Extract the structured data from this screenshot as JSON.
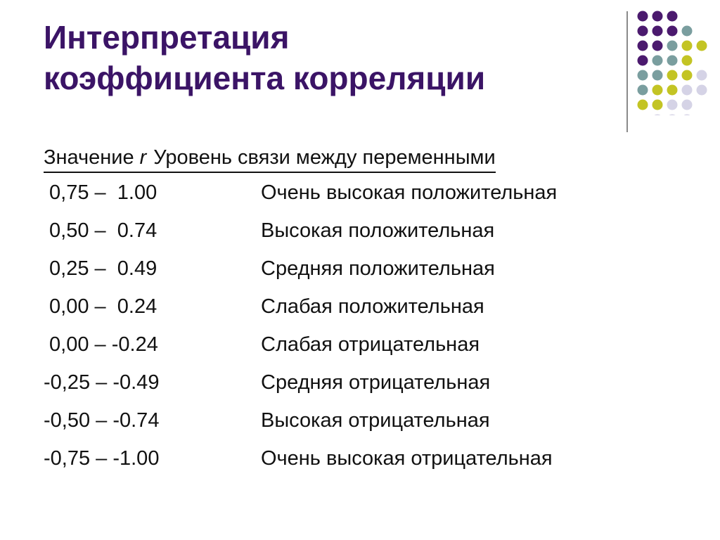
{
  "slide": {
    "title_line1": "Интерпретация",
    "title_line2": "коэффициента корреляции"
  },
  "table": {
    "header_value": "Значение",
    "header_r": "r",
    "header_level": "Уровень связи между переменными",
    "rows": [
      {
        "range": " 0,75 –  1.00",
        "level": "Очень высокая положительная"
      },
      {
        "range": " 0,50 –  0.74",
        "level": "Высокая положительная"
      },
      {
        "range": " 0,25 –  0.49",
        "level": "Средняя положительная"
      },
      {
        "range": " 0,00 –  0.24",
        "level": "Слабая положительная"
      },
      {
        "range": " 0,00 – -0.24",
        "level": "Слабая отрицательная"
      },
      {
        "range": "-0,25 – -0.49",
        "level": "Средняя отрицательная"
      },
      {
        "range": "-0,50 – -0.74",
        "level": "Высокая отрицательная"
      },
      {
        "range": "-0,75 – -1.00",
        "level": "Очень высокая отрицательная"
      }
    ]
  },
  "decoration": {
    "dot_colors": {
      "purple": "#4b1a6e",
      "teal": "#7a9e9f",
      "olive": "#c3c424",
      "lavender": "#d5d3e6"
    },
    "dot_grid": [
      [
        "purple",
        "purple",
        "purple",
        "",
        ""
      ],
      [
        "purple",
        "purple",
        "purple",
        "teal",
        ""
      ],
      [
        "purple",
        "purple",
        "teal",
        "olive",
        "olive"
      ],
      [
        "purple",
        "teal",
        "teal",
        "olive",
        ""
      ],
      [
        "teal",
        "teal",
        "olive",
        "olive",
        "lavender"
      ],
      [
        "teal",
        "olive",
        "olive",
        "lavender",
        "lavender"
      ],
      [
        "olive",
        "olive",
        "lavender",
        "lavender",
        ""
      ],
      [
        "",
        "lavender",
        "lavender",
        "lavender",
        ""
      ]
    ]
  }
}
